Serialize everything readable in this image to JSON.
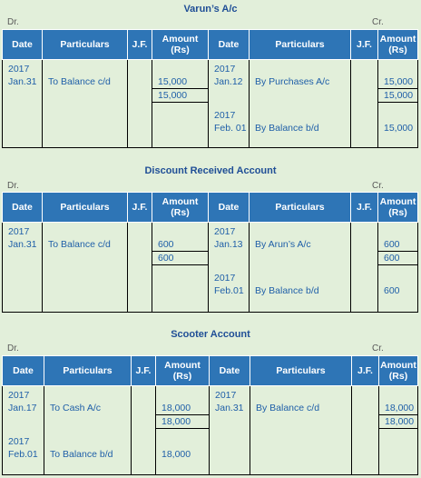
{
  "accounts": [
    {
      "title": "Varun’s A/c",
      "dr": "Dr.",
      "cr": "Cr.",
      "headers": {
        "date": "Date",
        "particulars": "Particulars",
        "jf": "J.F.",
        "amount": "Amount (Rs)"
      },
      "debit": {
        "year": "2017",
        "date": "Jan.31",
        "particulars": "To Balance c/d",
        "amount": "15,000",
        "total": "15,000"
      },
      "credit": {
        "year": "2017",
        "date": "Jan.12",
        "particulars": "By Purchases A/c",
        "amount": "15,000",
        "total": "15,000",
        "year2": "2017",
        "date2": "Feb. 01",
        "particulars2": "By Balance b/d",
        "amount2": "15,000"
      }
    },
    {
      "title": "Discount Received Account",
      "dr": "Dr.",
      "cr": "Cr.",
      "headers": {
        "date": "Date",
        "particulars": "Particulars",
        "jf": "J.F.",
        "amount": "Amount (Rs)"
      },
      "debit": {
        "year": "2017",
        "date": "Jan.31",
        "particulars": "To Balance c/d",
        "amount": "600",
        "total": "600"
      },
      "credit": {
        "year": "2017",
        "date": "Jan.13",
        "particulars": "By Arun’s A/c",
        "amount": "600",
        "total": "600",
        "year2": "2017",
        "date2": "Feb.01",
        "particulars2": "By Balance b/d",
        "amount2": "600"
      }
    },
    {
      "title": "Scooter Account",
      "dr": "Dr.",
      "cr": "Cr.",
      "headers": {
        "date": "Date",
        "particulars": "Particulars",
        "jf": "J.F.",
        "amount": "Amount (Rs)"
      },
      "debit": {
        "year": "2017",
        "date": "Jan.17",
        "particulars": "To Cash A/c",
        "amount": "18,000",
        "total": "18,000",
        "year2": "2017",
        "date2": "Feb.01",
        "particulars2": "To Balance b/d",
        "amount2": "18,000"
      },
      "credit": {
        "year": "2017",
        "date": "Jan.31",
        "particulars": "By Balance c/d",
        "amount": "18,000",
        "total": "18,000"
      }
    }
  ]
}
